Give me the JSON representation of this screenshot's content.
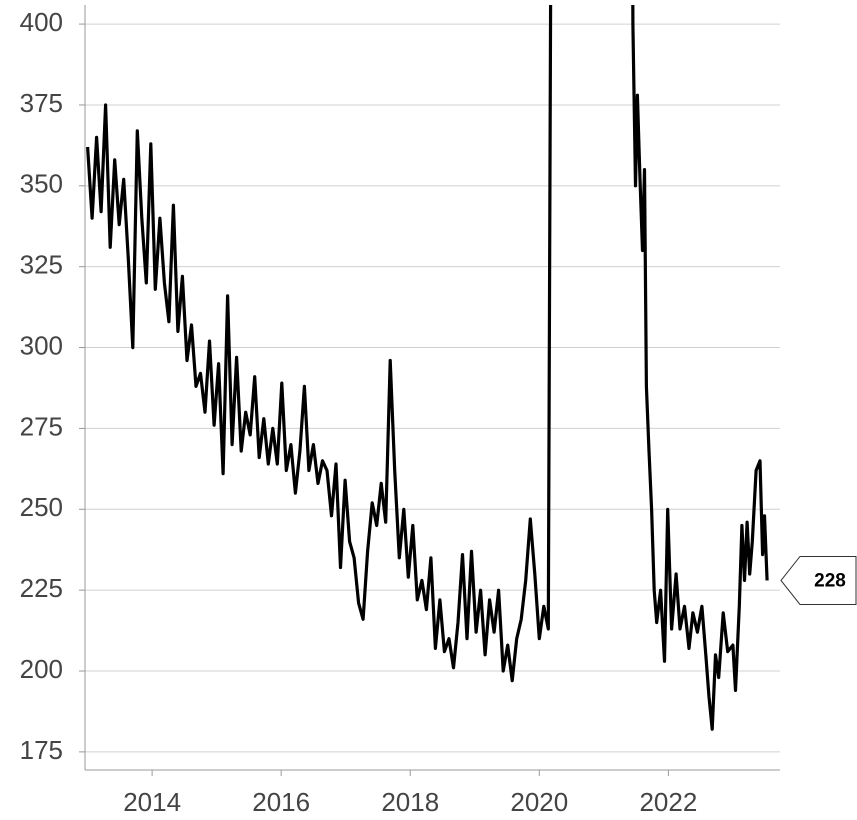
{
  "chart_data": {
    "type": "line",
    "x": [
      2013.0,
      2013.07,
      2013.14,
      2013.21,
      2013.28,
      2013.35,
      2013.42,
      2013.49,
      2013.56,
      2013.63,
      2013.7,
      2013.77,
      2013.84,
      2013.91,
      2013.98,
      2014.05,
      2014.12,
      2014.19,
      2014.26,
      2014.33,
      2014.4,
      2014.47,
      2014.54,
      2014.61,
      2014.68,
      2014.75,
      2014.82,
      2014.89,
      2014.96,
      2015.03,
      2015.1,
      2015.17,
      2015.24,
      2015.31,
      2015.38,
      2015.45,
      2015.52,
      2015.59,
      2015.66,
      2015.73,
      2015.8,
      2015.87,
      2015.94,
      2016.01,
      2016.08,
      2016.15,
      2016.22,
      2016.29,
      2016.36,
      2016.43,
      2016.5,
      2016.57,
      2016.64,
      2016.71,
      2016.78,
      2016.85,
      2016.92,
      2016.99,
      2017.06,
      2017.13,
      2017.2,
      2017.27,
      2017.34,
      2017.41,
      2017.48,
      2017.55,
      2017.62,
      2017.69,
      2017.76,
      2017.83,
      2017.9,
      2017.97,
      2018.04,
      2018.11,
      2018.18,
      2018.25,
      2018.32,
      2018.39,
      2018.46,
      2018.53,
      2018.6,
      2018.67,
      2018.74,
      2018.81,
      2018.88,
      2018.95,
      2019.02,
      2019.09,
      2019.16,
      2019.23,
      2019.3,
      2019.37,
      2019.44,
      2019.51,
      2019.58,
      2019.65,
      2019.72,
      2019.79,
      2019.86,
      2019.93,
      2020.0,
      2020.07,
      2020.14,
      2020.21,
      2021.41,
      2021.45,
      2021.49,
      2021.52,
      2021.56,
      2021.6,
      2021.63,
      2021.66,
      2021.7,
      2021.74,
      2021.78,
      2021.82,
      2021.88,
      2021.94,
      2021.99,
      2022.05,
      2022.12,
      2022.18,
      2022.25,
      2022.32,
      2022.38,
      2022.45,
      2022.52,
      2022.58,
      2022.63,
      2022.68,
      2022.73,
      2022.78,
      2022.85,
      2022.92,
      2023.0,
      2023.04,
      2023.1,
      2023.14,
      2023.18,
      2023.22,
      2023.26,
      2023.3,
      2023.36,
      2023.42,
      2023.46,
      2023.49,
      2023.53
    ],
    "values": [
      362,
      340,
      365,
      342,
      375,
      331,
      358,
      338,
      352,
      328,
      300,
      367,
      340,
      320,
      363,
      318,
      340,
      320,
      308,
      344,
      305,
      322,
      296,
      307,
      288,
      292,
      280,
      302,
      276,
      295,
      261,
      316,
      270,
      297,
      268,
      280,
      273,
      291,
      266,
      278,
      264,
      275,
      264,
      289,
      262,
      270,
      255,
      268,
      288,
      262,
      270,
      258,
      265,
      262,
      248,
      264,
      232,
      259,
      240,
      235,
      221,
      216,
      237,
      252,
      245,
      258,
      246,
      296,
      262,
      235,
      250,
      229,
      245,
      222,
      228,
      219,
      235,
      207,
      222,
      206,
      210,
      201,
      215,
      236,
      210,
      237,
      212,
      225,
      205,
      222,
      212,
      225,
      200,
      208,
      197,
      210,
      216,
      228,
      247,
      230,
      210,
      220,
      213,
      600,
      600,
      400,
      350,
      378,
      352,
      330,
      355,
      288,
      268,
      250,
      225,
      215,
      225,
      203,
      250,
      213,
      230,
      213,
      220,
      207,
      218,
      212,
      220,
      205,
      192,
      182,
      205,
      198,
      218,
      206,
      208,
      194,
      220,
      245,
      228,
      246,
      230,
      240,
      262,
      265,
      236,
      248,
      228
    ],
    "color": "#000000",
    "xlim": [
      2012.96,
      2023.73
    ],
    "xticks": [
      2014,
      2016,
      2018,
      2020,
      2022
    ],
    "ylim": [
      169.4,
      405.9
    ],
    "yticks": [
      175,
      200,
      225,
      250,
      275,
      300,
      325,
      350,
      375,
      400
    ],
    "grid": true
  }
}
